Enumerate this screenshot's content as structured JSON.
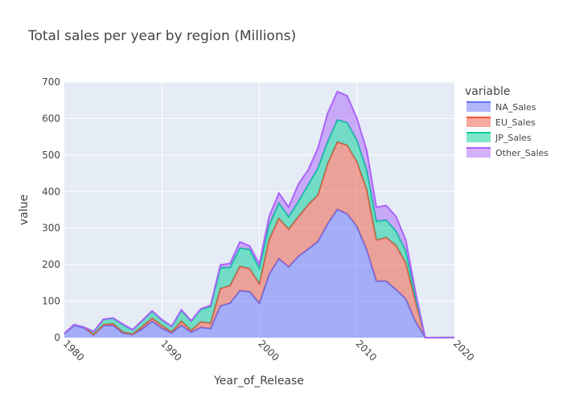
{
  "chart_data": {
    "type": "area",
    "title": "Total sales per year by region (Millions)",
    "xlabel": "Year_of_Release",
    "ylabel": "value",
    "xlim": [
      1980,
      2020
    ],
    "ylim": [
      0,
      700
    ],
    "x_ticks": [
      "1980",
      "1990",
      "2000",
      "2010",
      "2020"
    ],
    "y_ticks": [
      "0",
      "100",
      "200",
      "300",
      "400",
      "500",
      "600",
      "700"
    ],
    "legend_title": "variable",
    "legend_position": "right",
    "grid": true,
    "stacked": true,
    "x": [
      1980,
      1981,
      1982,
      1983,
      1984,
      1985,
      1986,
      1987,
      1988,
      1989,
      1990,
      1991,
      1992,
      1993,
      1994,
      1995,
      1996,
      1997,
      1998,
      1999,
      2000,
      2001,
      2002,
      2003,
      2004,
      2005,
      2006,
      2007,
      2008,
      2009,
      2010,
      2011,
      2012,
      2013,
      2014,
      2015,
      2016,
      2017,
      2020
    ],
    "series": [
      {
        "name": "NA_Sales",
        "color": "#636efa",
        "values": [
          10.6,
          33.4,
          26.9,
          7.8,
          33.3,
          33.7,
          12.5,
          8.5,
          23.9,
          45.2,
          25.5,
          12.8,
          33.9,
          15.1,
          28.2,
          24.8,
          86.8,
          94.8,
          128.4,
          126.1,
          94.5,
          173.1,
          216.2,
          193.6,
          222.5,
          242.6,
          263.1,
          312.1,
          351.4,
          338.9,
          304.2,
          241.2,
          154.9,
          154.8,
          131.9,
          106.9,
          44.9,
          0.0,
          0.3
        ]
      },
      {
        "name": "EU_Sales",
        "color": "#ef553b",
        "values": [
          0.7,
          2.0,
          1.7,
          0.8,
          2.1,
          4.7,
          3.0,
          1.4,
          6.6,
          8.4,
          7.6,
          3.0,
          11.7,
          4.7,
          14.9,
          14.9,
          47.3,
          48.3,
          66.9,
          62.7,
          52.8,
          95.9,
          110.4,
          103.5,
          108.6,
          121.4,
          127.3,
          164.2,
          184.5,
          187.9,
          177.0,
          164.7,
          112.4,
          119.6,
          120.7,
          97.7,
          55.0,
          0.0,
          0.0
        ]
      },
      {
        "name": "JP_Sales",
        "color": "#00cc96",
        "values": [
          0.0,
          0.0,
          0.0,
          8.1,
          14.3,
          14.6,
          19.8,
          11.6,
          15.8,
          18.4,
          14.9,
          14.8,
          28.9,
          25.3,
          33.9,
          45.8,
          57.4,
          48.9,
          50.0,
          52.3,
          42.8,
          39.9,
          41.8,
          34.2,
          41.7,
          54.3,
          73.7,
          60.3,
          60.3,
          61.9,
          59.5,
          53.0,
          51.8,
          47.6,
          39.5,
          33.7,
          13.7,
          0.0,
          0.0
        ]
      },
      {
        "name": "Other_Sales",
        "color": "#ab63fa",
        "values": [
          0.1,
          0.3,
          0.3,
          0.1,
          0.7,
          0.9,
          1.9,
          0.2,
          1.0,
          1.4,
          1.4,
          0.7,
          1.7,
          1.2,
          2.0,
          2.6,
          7.7,
          11.2,
          16.8,
          10.1,
          11.6,
          22.8,
          27.3,
          26.0,
          47.3,
          40.6,
          54.4,
          77.6,
          77.7,
          73.5,
          59.9,
          54.3,
          37.8,
          39.8,
          40.0,
          30.2,
          12.8,
          0.0,
          0.0
        ]
      }
    ]
  }
}
